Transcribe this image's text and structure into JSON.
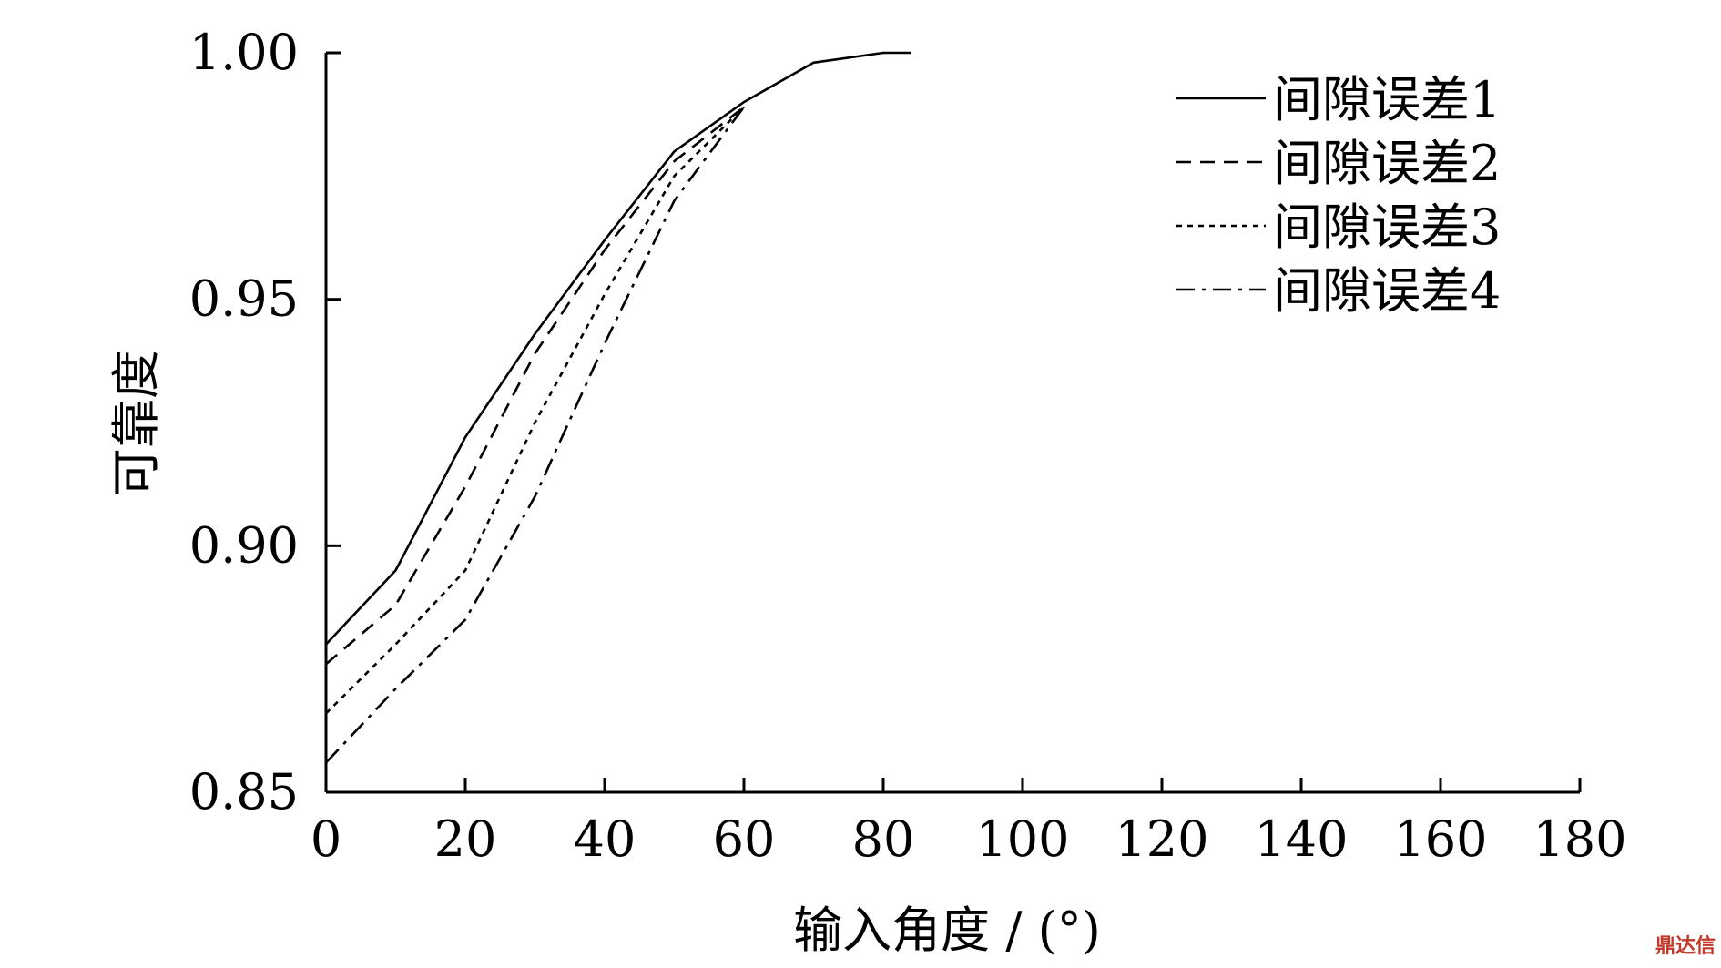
{
  "chart_data": {
    "type": "line",
    "title": "",
    "xlabel": "输入角度 / (°)",
    "ylabel": "可靠度",
    "xlim": [
      0,
      180
    ],
    "ylim": [
      0.85,
      1.0
    ],
    "x_ticks": [
      "0",
      "20",
      "40",
      "60",
      "80",
      "100",
      "120",
      "140",
      "160",
      "180"
    ],
    "y_ticks": [
      "0.85",
      "0.90",
      "0.95",
      "1.00"
    ],
    "legend_position": "top-right",
    "grid": false,
    "series": [
      {
        "name": "间隙误差1",
        "dash": "solid",
        "points": [
          [
            0,
            0.88
          ],
          [
            10,
            0.895
          ],
          [
            20,
            0.922
          ],
          [
            30,
            0.943
          ],
          [
            40,
            0.962
          ],
          [
            50,
            0.98
          ],
          [
            60,
            0.99
          ],
          [
            70,
            0.998
          ],
          [
            80,
            1.0
          ],
          [
            84,
            1.0
          ]
        ]
      },
      {
        "name": "间隙误差2",
        "dash": "dash",
        "points": [
          [
            0,
            0.876
          ],
          [
            10,
            0.888
          ],
          [
            20,
            0.912
          ],
          [
            30,
            0.939
          ],
          [
            40,
            0.96
          ],
          [
            50,
            0.978
          ],
          [
            60,
            0.989
          ]
        ]
      },
      {
        "name": "间隙误差3",
        "dash": "dot",
        "points": [
          [
            0,
            0.866
          ],
          [
            10,
            0.88
          ],
          [
            20,
            0.895
          ],
          [
            30,
            0.925
          ],
          [
            40,
            0.951
          ],
          [
            50,
            0.975
          ],
          [
            60,
            0.989
          ]
        ]
      },
      {
        "name": "间隙误差4",
        "dash": "dashdot",
        "points": [
          [
            0,
            0.856
          ],
          [
            10,
            0.871
          ],
          [
            20,
            0.885
          ],
          [
            30,
            0.91
          ],
          [
            40,
            0.941
          ],
          [
            50,
            0.97
          ],
          [
            60,
            0.989
          ]
        ]
      }
    ]
  },
  "watermark": "鼎达信"
}
